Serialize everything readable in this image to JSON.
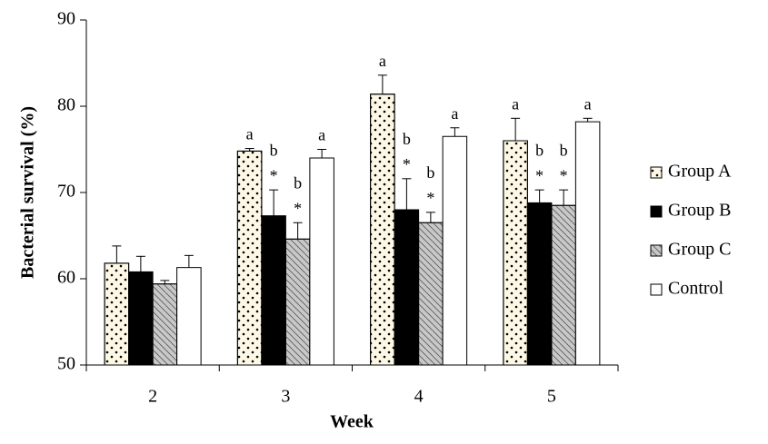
{
  "chart_data": {
    "type": "bar",
    "x_label": "Week",
    "y_label": "Bacterial survival (%)",
    "categories": [
      "2",
      "3",
      "4",
      "5"
    ],
    "ylim": [
      50,
      90
    ],
    "yticks": [
      50,
      60,
      70,
      80,
      90
    ],
    "legend": "right",
    "series": [
      {
        "name": "Group A",
        "color": "#fdf8e6",
        "pattern": "dots",
        "values": [
          61.8,
          74.8,
          81.4,
          76.0
        ],
        "errors": [
          2.0,
          0.3,
          2.2,
          2.6
        ],
        "annotations": [
          null,
          [
            "a"
          ],
          [
            "a"
          ],
          [
            "a"
          ]
        ]
      },
      {
        "name": "Group B",
        "color": "#000000",
        "pattern": "solid",
        "values": [
          60.8,
          67.3,
          68.0,
          68.8
        ],
        "errors": [
          1.8,
          3.0,
          3.6,
          1.5
        ],
        "annotations": [
          null,
          [
            "b",
            "*"
          ],
          [
            "b",
            "*"
          ],
          [
            "b",
            "*"
          ]
        ]
      },
      {
        "name": "Group C",
        "color": "#c8c8c8",
        "pattern": "hatch",
        "values": [
          59.4,
          64.6,
          66.5,
          68.5
        ],
        "errors": [
          0.4,
          1.9,
          1.2,
          1.8
        ],
        "annotations": [
          null,
          [
            "b",
            "*"
          ],
          [
            "b",
            "*"
          ],
          [
            "b",
            "*"
          ]
        ]
      },
      {
        "name": "Control",
        "color": "#ffffff",
        "pattern": "none",
        "values": [
          61.3,
          74.0,
          76.5,
          78.2
        ],
        "errors": [
          1.4,
          1.0,
          1.0,
          0.4
        ],
        "annotations": [
          null,
          [
            "a"
          ],
          [
            "a"
          ],
          [
            "a"
          ]
        ]
      }
    ]
  }
}
